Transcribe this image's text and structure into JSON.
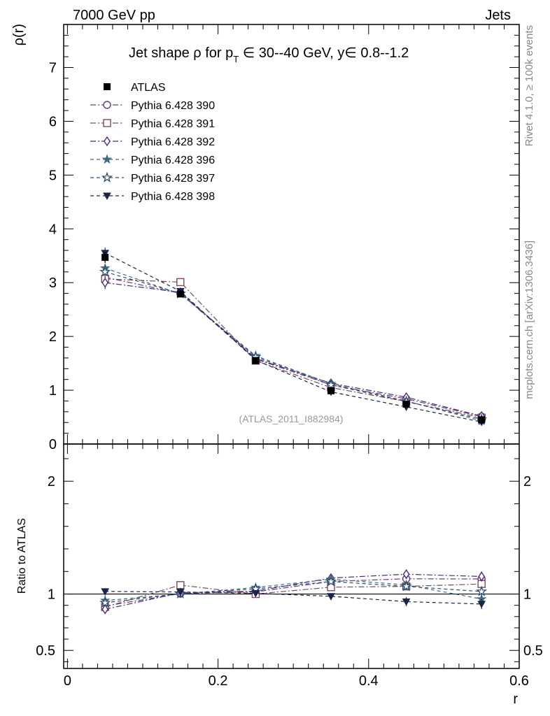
{
  "header": {
    "left": "7000 GeV pp",
    "right": "Jets"
  },
  "side_labels": {
    "rivet": "Rivet 4.1.0, ≥ 100k events",
    "mcplots": "mcplots.cern.ch [arXiv:1306.3436]"
  },
  "watermark": "(ATLAS_2011_I882984)",
  "chart_data": {
    "type": "line",
    "title": "Jet shape ρ for p_T ∈ 30--40 GeV, y ∈ 0.8--1.2",
    "title_parts": {
      "lead": "Jet shape ρ for p",
      "sub": "T",
      "tail": " ∈ 30--40 GeV, y∈ 0.8--1.2"
    },
    "xlabel": "r",
    "ylabel": "ρ(r)",
    "ratio_ylabel": "Ratio to ATLAS",
    "xlim": [
      -0.005,
      0.6
    ],
    "ylim": [
      0,
      7.8
    ],
    "ratio_ylim": [
      0.34,
      2.33
    ],
    "x": [
      0.05,
      0.15,
      0.25,
      0.35,
      0.45,
      0.55
    ],
    "xticks": [
      0,
      0.2,
      0.4,
      0.6
    ],
    "xtick_labels": [
      "0",
      "0.2",
      "0.4",
      "0.6"
    ],
    "yticks": [
      0,
      1,
      2,
      3,
      4,
      5,
      6,
      7
    ],
    "ytick_labels": [
      "0",
      "1",
      "2",
      "3",
      "4",
      "5",
      "6",
      "7"
    ],
    "ratio_yticks": [
      0.5,
      1,
      2
    ],
    "ratio_ytick_labels": [
      "0.5",
      "1",
      "2"
    ],
    "data": {
      "name": "ATLAS",
      "values": [
        3.47,
        2.79,
        1.55,
        0.99,
        0.74,
        0.45
      ],
      "errors": [
        0.1,
        0.06,
        0.04,
        0.03,
        0.03,
        0.03
      ]
    },
    "series": [
      {
        "name": "Pythia 6.428 390",
        "marker": "circle-open",
        "color": "#6b3a7a",
        "dash": "8,3,2,3",
        "values": [
          3.1,
          2.8,
          1.58,
          1.1,
          0.84,
          0.51
        ],
        "errors": [
          0.06,
          0.04,
          0.03,
          0.02,
          0.02,
          0.02
        ]
      },
      {
        "name": "Pythia 6.428 391",
        "marker": "square-open",
        "color": "#7a4a5a",
        "dash": "8,3,2,3",
        "values": [
          3.07,
          3.01,
          1.55,
          1.05,
          0.79,
          0.49
        ],
        "errors": [
          0.06,
          0.06,
          0.03,
          0.02,
          0.02,
          0.02
        ]
      },
      {
        "name": "Pythia 6.428 392",
        "marker": "diamond-open",
        "color": "#4a2a82",
        "dash": "8,3,2,3",
        "values": [
          3.0,
          2.82,
          1.59,
          1.13,
          0.87,
          0.52
        ],
        "errors": [
          0.12,
          0.05,
          0.03,
          0.03,
          0.03,
          0.02
        ]
      },
      {
        "name": "Pythia 6.428 396",
        "marker": "star-filled",
        "color": "#3f6a80",
        "dash": "5,4",
        "values": [
          3.27,
          2.79,
          1.64,
          1.12,
          0.8,
          0.43
        ],
        "errors": [
          0.06,
          0.04,
          0.03,
          0.02,
          0.02,
          0.02
        ]
      },
      {
        "name": "Pythia 6.428 397",
        "marker": "star-open",
        "color": "#2f4d70",
        "dash": "5,4",
        "values": [
          3.2,
          2.8,
          1.62,
          1.1,
          0.79,
          0.46
        ],
        "errors": [
          0.06,
          0.04,
          0.03,
          0.02,
          0.02,
          0.02
        ]
      },
      {
        "name": "Pythia 6.428 398",
        "marker": "triangle-down-filled",
        "color": "#1a2448",
        "dash": "5,4",
        "values": [
          3.55,
          2.84,
          1.56,
          0.97,
          0.69,
          0.41
        ],
        "errors": [
          0.1,
          0.05,
          0.03,
          0.02,
          0.03,
          0.02
        ]
      }
    ]
  }
}
